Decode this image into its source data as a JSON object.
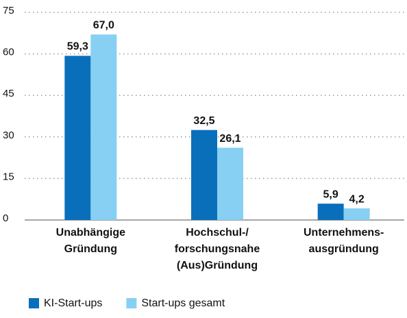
{
  "chart_data": {
    "type": "bar",
    "categories": [
      [
        "Unabhängige",
        "Gründung"
      ],
      [
        "Hochschul-/",
        "forschungsnahe",
        "(Aus)Gründung"
      ],
      [
        "Unternehmens-",
        "ausgründung"
      ]
    ],
    "series": [
      {
        "name": "KI-Start-ups",
        "color": "#0a6fba",
        "values": [
          59.3,
          32.5,
          5.9
        ],
        "value_labels": [
          "59,3",
          "32,5",
          "5,9"
        ]
      },
      {
        "name": "Start-ups gesamt",
        "color": "#87d0f3",
        "values": [
          67.0,
          26.1,
          4.2
        ],
        "value_labels": [
          "67,0",
          "26,1",
          "4,2"
        ]
      }
    ],
    "ylim": [
      0,
      75
    ],
    "yticks": [
      0,
      15,
      30,
      45,
      60,
      75
    ],
    "grid": true,
    "legend": "bottom"
  }
}
